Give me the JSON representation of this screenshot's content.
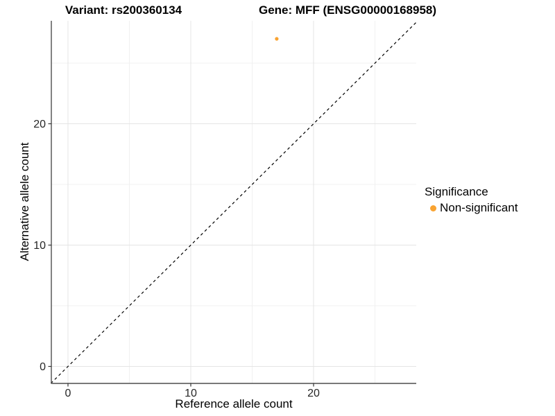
{
  "titles": {
    "left": "Variant: rs200360134",
    "right": "Gene: MFF (ENSG00000168958)"
  },
  "chart_data": {
    "type": "scatter",
    "title": "Variant: rs200360134 | Gene: MFF (ENSG00000168958)",
    "xlabel": "Reference allele count",
    "ylabel": "Alternative allele count",
    "xlim": [
      -1.4,
      28.4
    ],
    "ylim": [
      -1.4,
      28.4
    ],
    "x_ticks": [
      0,
      10,
      20
    ],
    "y_ticks": [
      0,
      10,
      20
    ],
    "minor_grid": [
      5,
      15,
      25
    ],
    "grid": "on",
    "series": [
      {
        "name": "Non-significant",
        "color": "#F9A331",
        "points": [
          {
            "x": 17,
            "y": 27
          }
        ]
      }
    ],
    "reference_line": {
      "type": "identity",
      "slope": 1,
      "intercept": 0,
      "style": "dashed",
      "color": "#000000"
    },
    "legend": {
      "title": "Significance",
      "position": "right",
      "items": [
        {
          "label": "Non-significant",
          "color": "#F9A331"
        }
      ]
    }
  },
  "colors": {
    "accent_orange": "#F9A331",
    "axis_line": "#4d4d4d",
    "tick_mark": "#333333",
    "grid_major": "#e4e4e4",
    "grid_minor": "#f0f0f0",
    "tick_text": "#262626",
    "text": "#000000",
    "background": "#ffffff"
  }
}
